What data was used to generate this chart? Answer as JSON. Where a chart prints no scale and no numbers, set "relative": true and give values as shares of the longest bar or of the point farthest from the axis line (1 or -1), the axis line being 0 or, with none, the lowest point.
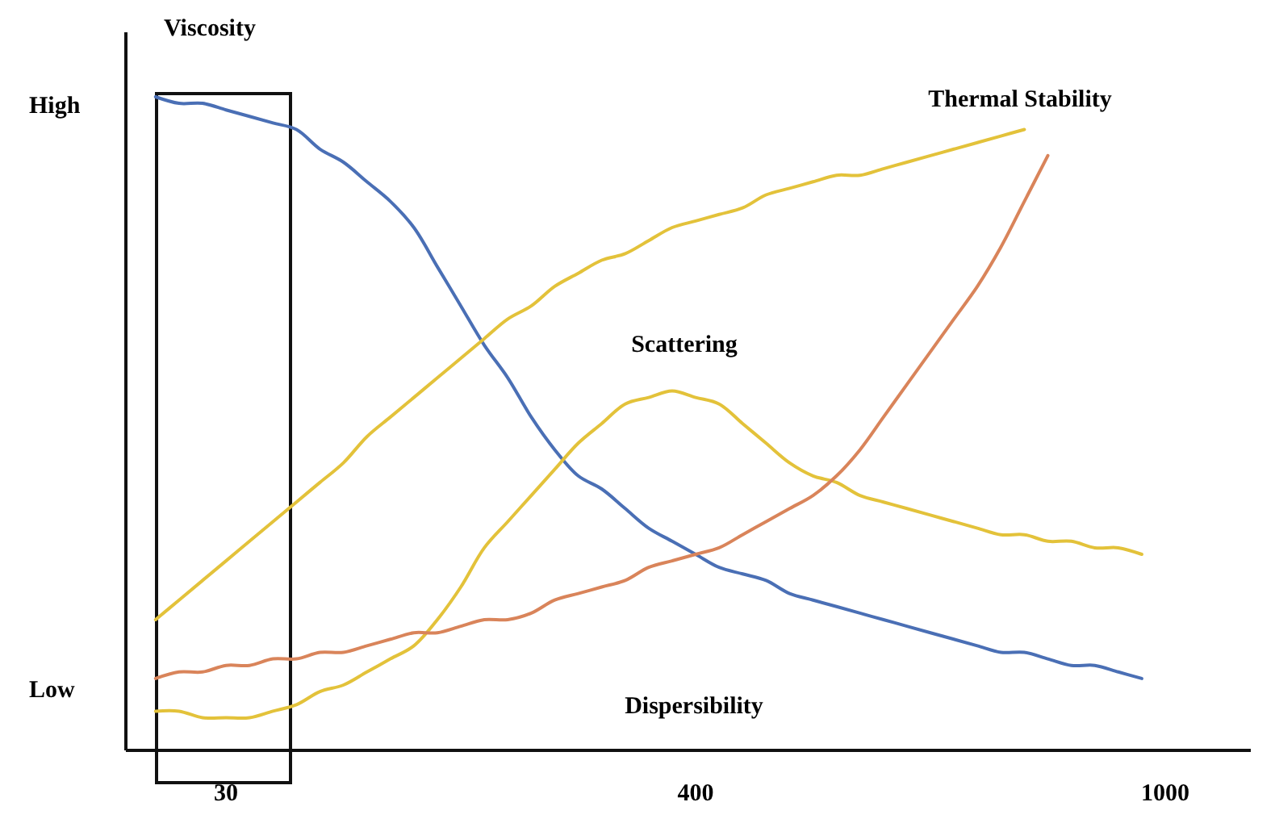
{
  "chart_data": {
    "type": "line",
    "relative": true,
    "line_style": "solid",
    "categories": [
      null,
      null,
      null,
      "30",
      null,
      null,
      null,
      null,
      null,
      null,
      null,
      null,
      null,
      null,
      null,
      null,
      null,
      null,
      null,
      null,
      null,
      null,
      null,
      "400",
      null,
      null,
      null,
      null,
      null,
      null,
      null,
      null,
      null,
      null,
      null,
      null,
      null,
      null,
      null,
      null,
      null,
      null,
      null,
      "1000"
    ],
    "annotations": [
      "High",
      "Low",
      "Dispersibility"
    ],
    "series": [
      {
        "name": "Viscosity",
        "color": "#4a6fb5",
        "values": [
          1.0,
          0.99,
          0.99,
          0.98,
          0.97,
          0.96,
          0.95,
          0.92,
          0.9,
          0.87,
          0.84,
          0.8,
          0.74,
          0.68,
          0.62,
          0.57,
          0.51,
          0.46,
          0.42,
          0.4,
          0.37,
          0.34,
          0.32,
          0.3,
          0.28,
          0.27,
          0.26,
          0.24,
          0.23,
          0.22,
          0.21,
          0.2,
          0.19,
          0.18,
          0.17,
          0.16,
          0.15,
          0.15,
          0.14,
          0.13,
          0.13,
          0.12,
          0.11,
          null
        ]
      },
      {
        "name": "Thermal Stability",
        "color": "#e3c23a",
        "values": [
          0.2,
          0.23,
          0.26,
          0.29,
          0.32,
          0.35,
          0.38,
          0.41,
          0.44,
          0.48,
          0.51,
          0.54,
          0.57,
          0.6,
          0.63,
          0.66,
          0.68,
          0.71,
          0.73,
          0.75,
          0.76,
          0.78,
          0.8,
          0.81,
          0.82,
          0.83,
          0.85,
          0.86,
          0.87,
          0.88,
          0.88,
          0.89,
          0.9,
          0.91,
          0.92,
          0.93,
          0.94,
          0.95,
          null,
          null,
          null,
          null,
          null,
          null
        ]
      },
      {
        "name": "Scattering",
        "color": "#e3c23a",
        "values": [
          0.06,
          0.06,
          0.05,
          0.05,
          0.05,
          0.06,
          0.07,
          0.09,
          0.1,
          0.12,
          0.14,
          0.16,
          0.2,
          0.25,
          0.31,
          0.35,
          0.39,
          0.43,
          0.47,
          0.5,
          0.53,
          0.54,
          0.55,
          0.54,
          0.53,
          0.5,
          0.47,
          0.44,
          0.42,
          0.41,
          0.39,
          0.38,
          0.37,
          0.36,
          0.35,
          0.34,
          0.33,
          0.33,
          0.32,
          0.32,
          0.31,
          0.31,
          0.3,
          null
        ]
      },
      {
        "color": "#d9845a",
        "values": [
          0.11,
          0.12,
          0.12,
          0.13,
          0.13,
          0.14,
          0.14,
          0.15,
          0.15,
          0.16,
          0.17,
          0.18,
          0.18,
          0.19,
          0.2,
          0.2,
          0.21,
          0.23,
          0.24,
          0.25,
          0.26,
          0.28,
          0.29,
          0.3,
          0.31,
          0.33,
          0.35,
          0.37,
          0.39,
          0.42,
          0.46,
          0.51,
          0.56,
          0.61,
          0.66,
          0.71,
          0.77,
          0.84,
          0.91,
          null,
          null,
          null,
          null,
          null
        ]
      }
    ]
  }
}
